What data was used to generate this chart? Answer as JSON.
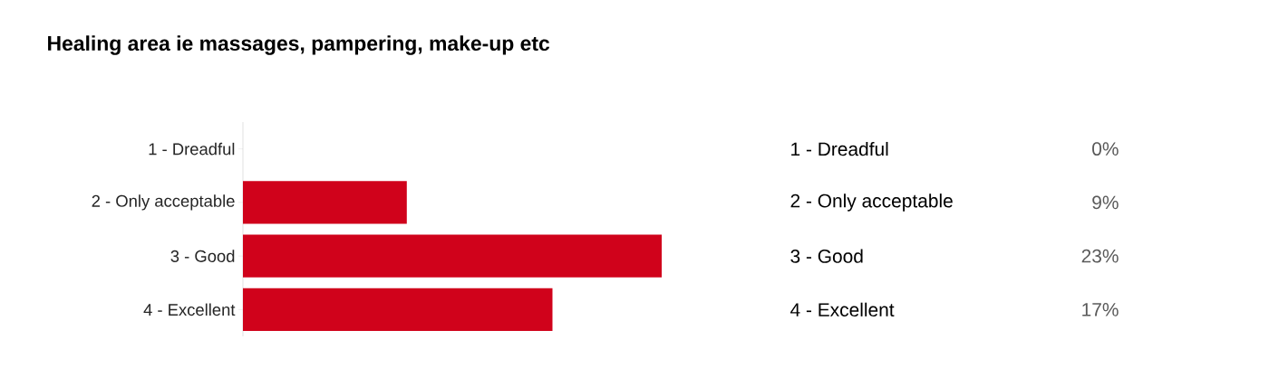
{
  "chart_data": {
    "type": "bar",
    "orientation": "horizontal",
    "title": "Healing area ie massages, pampering, make-up etc",
    "categories": [
      "1 - Dreadful",
      "2 - Only acceptable",
      "3 - Good",
      "4 - Excellent"
    ],
    "values": [
      0,
      9,
      23,
      17
    ],
    "value_labels": [
      "0%",
      "9%",
      "23%",
      "17%"
    ],
    "color": "#d0021b"
  }
}
